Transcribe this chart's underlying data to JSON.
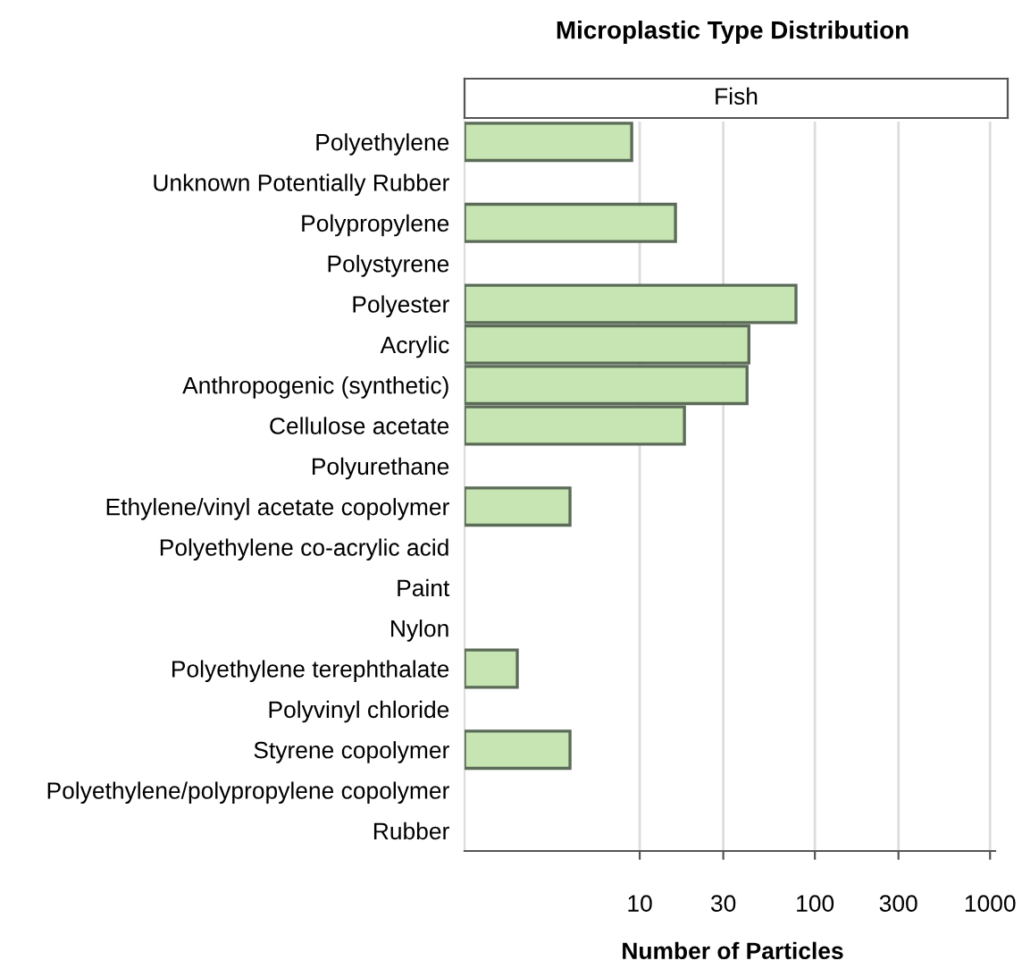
{
  "chart_data": {
    "type": "bar",
    "orientation": "horizontal",
    "title": "Microplastic Type Distribution",
    "subtitle": "Fish",
    "xlabel": "Number of Particles",
    "categories": [
      "Polyethylene",
      "Unknown Potentially Rubber",
      "Polypropylene",
      "Polystyrene",
      "Polyester",
      "Acrylic",
      "Anthropogenic (synthetic)",
      "Cellulose acetate",
      "Polyurethane",
      "Ethylene/vinyl acetate copolymer",
      "Polyethylene co-acrylic acid",
      "Paint",
      "Nylon",
      "Polyethylene terephthalate",
      "Polyvinyl chloride",
      "Styrene copolymer",
      "Polyethylene/polypropylene copolymer",
      "Rubber"
    ],
    "values": [
      9,
      null,
      16,
      null,
      78,
      42,
      41,
      18,
      null,
      4,
      null,
      null,
      null,
      2,
      null,
      4,
      null,
      null
    ],
    "color": "#c6e5b3",
    "log": "x",
    "xlim": [
      1,
      1070
    ],
    "xticks": [
      10,
      30,
      100,
      300,
      1000
    ],
    "grid": "x"
  }
}
